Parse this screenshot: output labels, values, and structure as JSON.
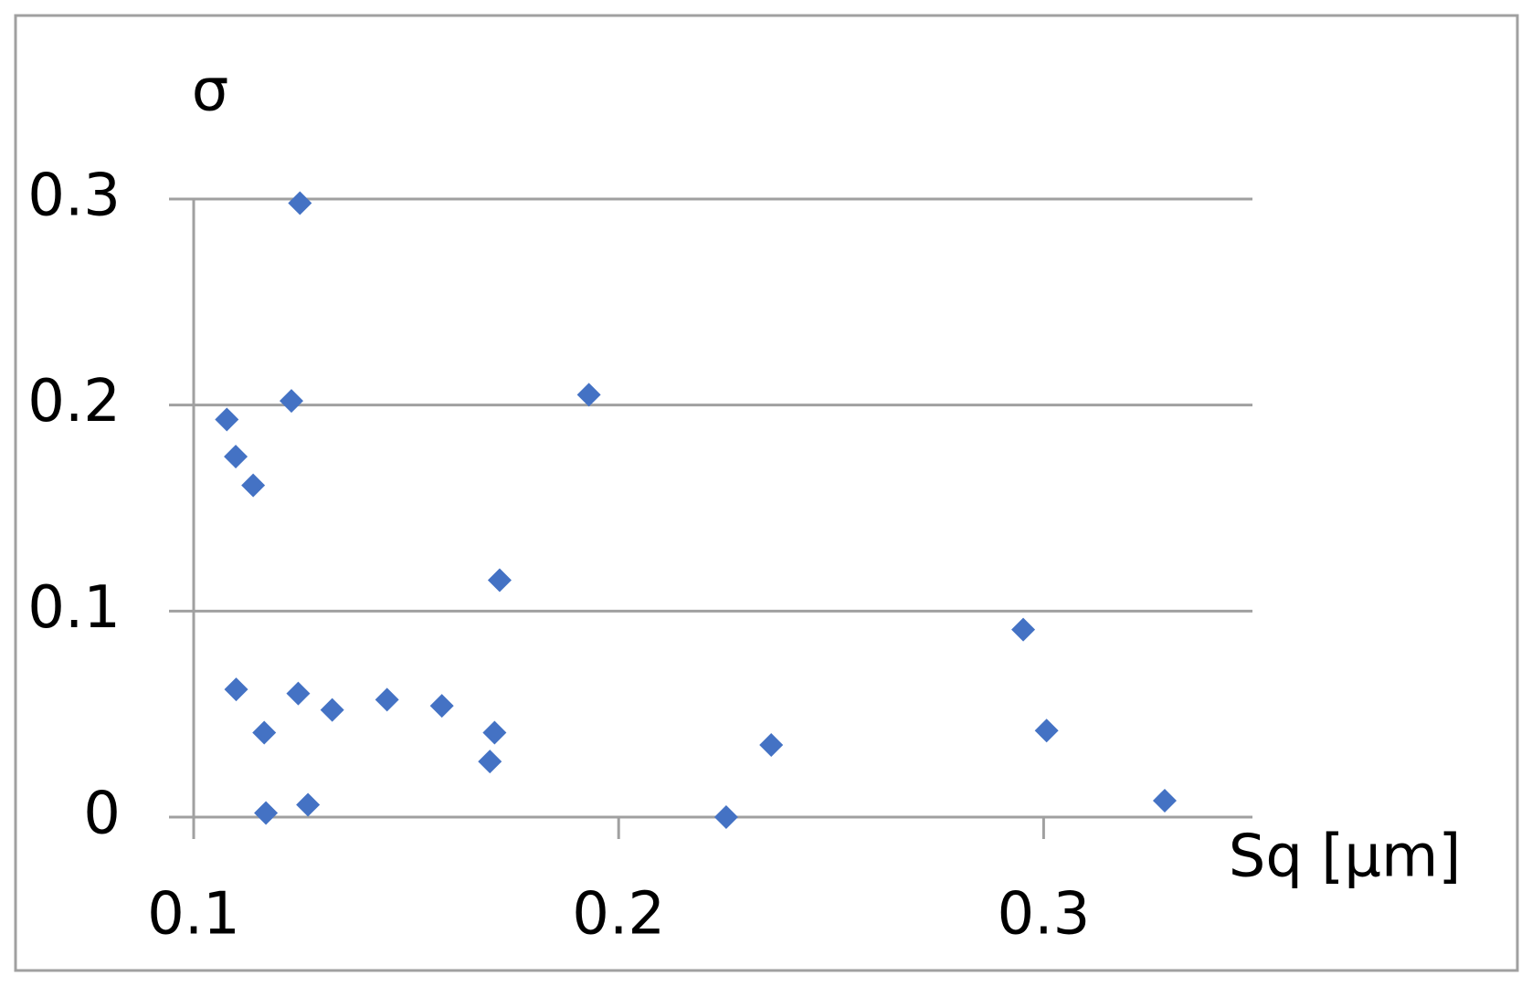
{
  "chart_data": {
    "type": "scatter",
    "x_label": "Sq [µm]",
    "y_label": "σ",
    "x": [
      0.1078,
      0.1099,
      0.114,
      0.125,
      0.123,
      0.193,
      0.172,
      0.11,
      0.1246,
      0.1326,
      0.1455,
      0.1584,
      0.1708,
      0.1697,
      0.1166,
      0.117,
      0.1269,
      0.2253,
      0.2359,
      0.2952,
      0.3007,
      0.3285
    ],
    "series": [
      {
        "color": "#4472c4",
        "values": [
          0.193,
          0.175,
          0.161,
          0.298,
          0.202,
          0.205,
          0.115,
          0.062,
          0.06,
          0.052,
          0.057,
          0.054,
          0.041,
          0.027,
          0.041,
          0.002,
          0.006,
          0.0,
          0.035,
          0.091,
          0.042,
          0.008
        ]
      }
    ],
    "xlim": [
      0.1,
      0.35
    ],
    "ylim": [
      0,
      0.3
    ],
    "xticks": [
      0.1,
      0.2,
      0.3
    ],
    "yticks": [
      0,
      0.1,
      0.2,
      0.3
    ],
    "grid": "y"
  }
}
